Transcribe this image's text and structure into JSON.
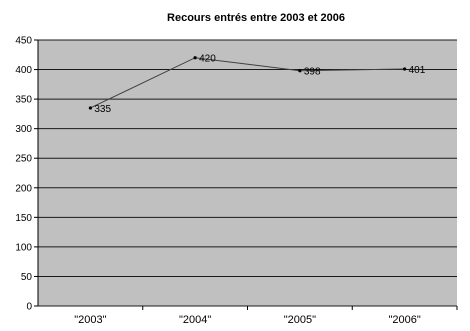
{
  "chart_data": {
    "type": "line",
    "title": "Recours entrés entre 2003 et 2006",
    "xlabel": "",
    "ylabel": "",
    "categories": [
      "\"2003\"",
      "\"2004\"",
      "\"2005\"",
      "\"2006\""
    ],
    "series": [
      {
        "values": [
          335,
          420,
          398,
          401
        ]
      }
    ],
    "data_labels": [
      "335",
      "420",
      "398",
      "401"
    ],
    "ylim": [
      0,
      450
    ],
    "yticks": [
      "0",
      "50",
      "100",
      "150",
      "200",
      "250",
      "300",
      "350",
      "400",
      "450"
    ],
    "grid": true,
    "legend": "none",
    "colors": {
      "plot_background": "#c0c0c0",
      "gridline": "#1a1a1a",
      "line": "#404040",
      "marker": "#000000"
    }
  }
}
